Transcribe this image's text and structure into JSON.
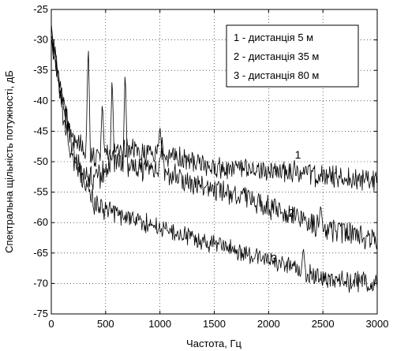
{
  "chart_data": {
    "type": "line",
    "xlabel": "Частота, Гц",
    "ylabel": "Спектральна щільність потужності, дБ",
    "xlim": [
      0,
      3000
    ],
    "ylim": [
      -75,
      -25
    ],
    "xticks": [
      0,
      500,
      1000,
      1500,
      2000,
      2500,
      3000
    ],
    "yticks": [
      -25,
      -30,
      -35,
      -40,
      -45,
      -50,
      -55,
      -60,
      -65,
      -70,
      -75
    ],
    "grid": true,
    "legend_position": "top-right",
    "legend": [
      "1 - дистанція  5 м",
      "2 - дистанція 35 м",
      "3 - дистанція 80 м"
    ],
    "series": [
      {
        "name": "1 - дистанція  5 м",
        "label": "1",
        "label_at": [
          2270,
          -49.5
        ],
        "baseline": [
          [
            0,
            -30
          ],
          [
            100,
            -40
          ],
          [
            200,
            -46
          ],
          [
            300,
            -48
          ],
          [
            400,
            -49
          ],
          [
            600,
            -48.5
          ],
          [
            800,
            -48
          ],
          [
            1000,
            -49
          ],
          [
            1200,
            -49.5
          ],
          [
            1500,
            -51
          ],
          [
            1800,
            -51.5
          ],
          [
            2200,
            -51.5
          ],
          [
            2500,
            -52.5
          ],
          [
            3000,
            -53
          ]
        ],
        "noise": 1.0,
        "peaks": [
          [
            340,
            -30
          ],
          [
            470,
            -40
          ],
          [
            1000,
            -44
          ]
        ]
      },
      {
        "name": "2 - дистанція 35 м",
        "label": "2",
        "label_at": [
          2210,
          -59
        ],
        "baseline": [
          [
            0,
            -29
          ],
          [
            100,
            -40
          ],
          [
            200,
            -48
          ],
          [
            300,
            -52
          ],
          [
            400,
            -53
          ],
          [
            600,
            -50
          ],
          [
            800,
            -51
          ],
          [
            1000,
            -51
          ],
          [
            1200,
            -53
          ],
          [
            1500,
            -54.5
          ],
          [
            1800,
            -56
          ],
          [
            2000,
            -57.5
          ],
          [
            2300,
            -59
          ],
          [
            2500,
            -61
          ],
          [
            2800,
            -62
          ],
          [
            3000,
            -63
          ]
        ],
        "noise": 1.1,
        "peaks": [
          [
            560,
            -35.5
          ],
          [
            680,
            -34.5
          ],
          [
            1020,
            -46
          ],
          [
            2480,
            -57
          ]
        ]
      },
      {
        "name": "3 - дистанція 80 м",
        "label": "3",
        "label_at": [
          2050,
          -66.5
        ],
        "baseline": [
          [
            0,
            -27
          ],
          [
            100,
            -42
          ],
          [
            200,
            -50
          ],
          [
            300,
            -53
          ],
          [
            400,
            -57
          ],
          [
            500,
            -58
          ],
          [
            700,
            -59
          ],
          [
            1000,
            -61
          ],
          [
            1300,
            -62.5
          ],
          [
            1600,
            -64
          ],
          [
            2000,
            -66
          ],
          [
            2300,
            -68
          ],
          [
            2600,
            -69.5
          ],
          [
            3000,
            -70
          ]
        ],
        "noise": 0.9,
        "peaks": [
          [
            2320,
            -64
          ]
        ]
      }
    ]
  }
}
